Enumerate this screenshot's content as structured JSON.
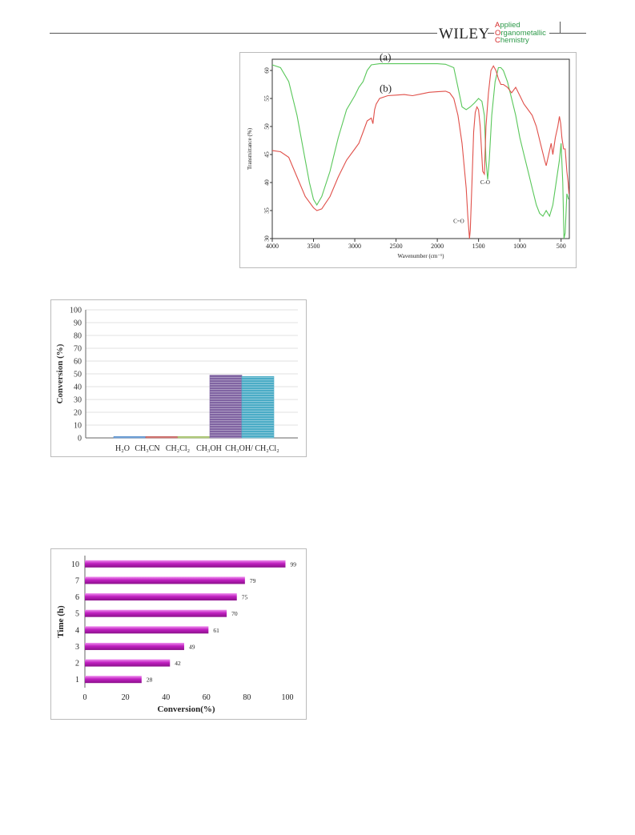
{
  "header": {
    "publisher": "WILEY",
    "journal_lines": [
      {
        "initial": "A",
        "rest": "pplied"
      },
      {
        "initial": "O",
        "rest": "rganometallic"
      },
      {
        "initial": "C",
        "rest": "hemistry"
      }
    ],
    "page_number": "",
    "initial_color": "#d42a2a",
    "rest_color": "#2e9a4a"
  },
  "chart_data": [
    {
      "type": "line",
      "xlabel": "Wavenumber (cm⁻¹)",
      "ylabel": "Transmittance (%)",
      "xlim": [
        4000,
        400
      ],
      "ylim": [
        30,
        62
      ],
      "x_ticks": [
        4000,
        3500,
        3000,
        2500,
        2000,
        1500,
        1000,
        500
      ],
      "y_ticks": [
        30,
        35,
        40,
        45,
        50,
        55,
        60
      ],
      "annotations": [
        {
          "text": "(a)",
          "x": 2700,
          "y": 61.8
        },
        {
          "text": "(b)",
          "x": 2700,
          "y": 56.2
        },
        {
          "text": "C=O",
          "x": 1740,
          "y": 32.8
        },
        {
          "text": "C-O",
          "x": 1420,
          "y": 39.7
        }
      ],
      "series": [
        {
          "name": "(a)",
          "color": "#59c75a",
          "points": [
            [
              4000,
              61
            ],
            [
              3900,
              60.5
            ],
            [
              3800,
              58
            ],
            [
              3700,
              52
            ],
            [
              3600,
              44
            ],
            [
              3550,
              40
            ],
            [
              3500,
              37
            ],
            [
              3460,
              36
            ],
            [
              3400,
              37.5
            ],
            [
              3300,
              42
            ],
            [
              3200,
              48
            ],
            [
              3100,
              53
            ],
            [
              3000,
              55.5
            ],
            [
              2950,
              57
            ],
            [
              2900,
              58
            ],
            [
              2850,
              60
            ],
            [
              2800,
              61
            ],
            [
              2700,
              61.2
            ],
            [
              2500,
              61.2
            ],
            [
              2300,
              61.2
            ],
            [
              2100,
              61.2
            ],
            [
              2000,
              61.2
            ],
            [
              1900,
              61.1
            ],
            [
              1800,
              60.5
            ],
            [
              1750,
              57
            ],
            [
              1700,
              53.5
            ],
            [
              1650,
              53
            ],
            [
              1600,
              53.5
            ],
            [
              1550,
              54.2
            ],
            [
              1500,
              55
            ],
            [
              1460,
              54.5
            ],
            [
              1430,
              52
            ],
            [
              1410,
              44
            ],
            [
              1390,
              40.5
            ],
            [
              1370,
              44
            ],
            [
              1340,
              52
            ],
            [
              1300,
              58
            ],
            [
              1260,
              60.5
            ],
            [
              1230,
              60.5
            ],
            [
              1200,
              60
            ],
            [
              1150,
              58
            ],
            [
              1100,
              55
            ],
            [
              1050,
              52
            ],
            [
              1000,
              48
            ],
            [
              950,
              45
            ],
            [
              900,
              42
            ],
            [
              850,
              39
            ],
            [
              800,
              36
            ],
            [
              760,
              34.5
            ],
            [
              720,
              34
            ],
            [
              680,
              35
            ],
            [
              640,
              34
            ],
            [
              600,
              36
            ],
            [
              560,
              40
            ],
            [
              520,
              44
            ],
            [
              500,
              47
            ],
            [
              480,
              40
            ],
            [
              465,
              30
            ],
            [
              450,
              31
            ],
            [
              430,
              38
            ],
            [
              410,
              37
            ]
          ]
        },
        {
          "name": "(b)",
          "color": "#e0504a",
          "points": [
            [
              4000,
              45.7
            ],
            [
              3900,
              45.5
            ],
            [
              3800,
              44.5
            ],
            [
              3700,
              41
            ],
            [
              3600,
              37.5
            ],
            [
              3500,
              35.5
            ],
            [
              3460,
              35
            ],
            [
              3400,
              35.3
            ],
            [
              3300,
              37.5
            ],
            [
              3200,
              41
            ],
            [
              3100,
              44
            ],
            [
              3000,
              46
            ],
            [
              2950,
              47
            ],
            [
              2900,
              49
            ],
            [
              2850,
              51
            ],
            [
              2800,
              51.5
            ],
            [
              2780,
              50.5
            ],
            [
              2760,
              53
            ],
            [
              2740,
              54
            ],
            [
              2700,
              55
            ],
            [
              2600,
              55.5
            ],
            [
              2500,
              55.6
            ],
            [
              2400,
              55.7
            ],
            [
              2300,
              55.5
            ],
            [
              2200,
              55.8
            ],
            [
              2100,
              56.1
            ],
            [
              2000,
              56.2
            ],
            [
              1900,
              56.3
            ],
            [
              1850,
              56
            ],
            [
              1800,
              55
            ],
            [
              1750,
              52
            ],
            [
              1700,
              47
            ],
            [
              1650,
              39
            ],
            [
              1630,
              34
            ],
            [
              1610,
              30
            ],
            [
              1600,
              31.5
            ],
            [
              1580,
              40
            ],
            [
              1560,
              49
            ],
            [
              1540,
              52.5
            ],
            [
              1520,
              53.5
            ],
            [
              1500,
              53
            ],
            [
              1480,
              50
            ],
            [
              1450,
              42
            ],
            [
              1430,
              41.5
            ],
            [
              1410,
              50
            ],
            [
              1380,
              56
            ],
            [
              1350,
              60
            ],
            [
              1320,
              60.8
            ],
            [
              1290,
              60
            ],
            [
              1260,
              58.5
            ],
            [
              1230,
              57.5
            ],
            [
              1200,
              57.5
            ],
            [
              1150,
              57
            ],
            [
              1100,
              56
            ],
            [
              1050,
              57
            ],
            [
              1000,
              55.5
            ],
            [
              950,
              54
            ],
            [
              900,
              53
            ],
            [
              850,
              52
            ],
            [
              800,
              50
            ],
            [
              750,
              47
            ],
            [
              700,
              44
            ],
            [
              680,
              43
            ],
            [
              650,
              45
            ],
            [
              620,
              47
            ],
            [
              600,
              45
            ],
            [
              570,
              48
            ],
            [
              540,
              50
            ],
            [
              520,
              51.8
            ],
            [
              505,
              50.5
            ],
            [
              490,
              48
            ],
            [
              470,
              46
            ],
            [
              450,
              46
            ],
            [
              430,
              42
            ],
            [
              415,
              40
            ],
            [
              405,
              38
            ]
          ]
        }
      ]
    },
    {
      "type": "bar",
      "ylabel": "Conversion (%)",
      "ylim": [
        0,
        100
      ],
      "y_ticks": [
        0,
        10,
        20,
        30,
        40,
        50,
        60,
        70,
        80,
        90,
        100
      ],
      "categories": [
        "H₂O",
        "CH₃CN",
        "CH₂Cl₂",
        "CH₃OH",
        "CH₃OH/ CH₂Cl₂"
      ],
      "values": [
        1,
        1,
        1,
        49,
        48
      ],
      "colors": [
        "#4a86c8",
        "#c0504d",
        "#9bbb59",
        "#8064a2",
        "#4bacc6"
      ]
    },
    {
      "type": "bar",
      "orientation": "horizontal",
      "xlabel": "Conversion(%)",
      "ylabel": "Time (h)",
      "xlim": [
        0,
        100
      ],
      "x_ticks": [
        0,
        20,
        40,
        60,
        80,
        100
      ],
      "categories": [
        "1",
        "2",
        "3",
        "4",
        "5",
        "6",
        "7",
        "10"
      ],
      "values": [
        28,
        42,
        49,
        61,
        70,
        75,
        79,
        99
      ],
      "color": "#c020c0"
    }
  ]
}
